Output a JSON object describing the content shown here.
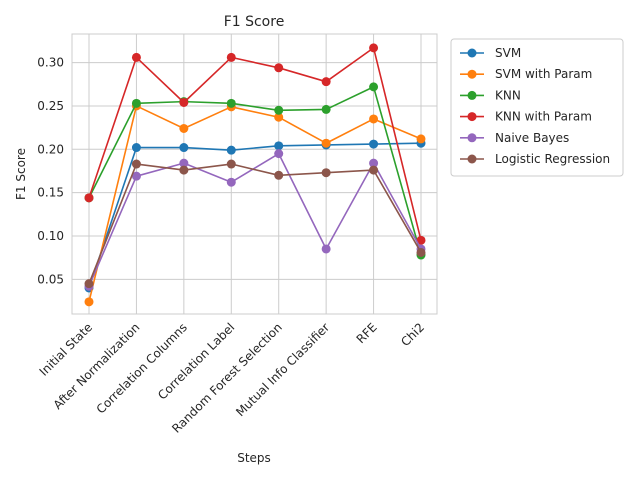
{
  "chart_data": {
    "type": "line",
    "title": "F1 Score",
    "xlabel": "Steps",
    "ylabel": "F1 Score",
    "categories": [
      "Initial State",
      "After Normalization",
      "Correlation Columns",
      "Correlation Label",
      "Random Forest Selection",
      "Mutual Info Classifier",
      "RFE",
      "Chi2"
    ],
    "yticks": [
      0.05,
      0.1,
      0.15,
      0.2,
      0.25,
      0.3
    ],
    "ytick_labels": [
      "0.05",
      "0.10",
      "0.15",
      "0.20",
      "0.25",
      "0.30"
    ],
    "ylim": [
      0.01,
      0.333
    ],
    "grid": true,
    "legend_position": "outside top-right",
    "series": [
      {
        "name": "SVM",
        "color": "#1f77b4",
        "values": [
          0.04,
          0.202,
          0.202,
          0.199,
          0.204,
          0.205,
          0.206,
          0.207
        ]
      },
      {
        "name": "SVM with Param",
        "color": "#ff7f0e",
        "values": [
          0.024,
          0.25,
          0.224,
          0.249,
          0.237,
          0.207,
          0.235,
          0.212
        ]
      },
      {
        "name": "KNN",
        "color": "#2ca02c",
        "values": [
          0.144,
          0.253,
          0.255,
          0.253,
          0.245,
          0.246,
          0.272,
          0.078
        ]
      },
      {
        "name": "KNN with Param",
        "color": "#d62728",
        "values": [
          0.144,
          0.306,
          0.254,
          0.306,
          0.294,
          0.278,
          0.317,
          0.095
        ]
      },
      {
        "name": "Naive Bayes",
        "color": "#9467bd",
        "values": [
          0.042,
          0.169,
          0.184,
          0.162,
          0.195,
          0.085,
          0.184,
          0.085
        ]
      },
      {
        "name": "Logistic Regression",
        "color": "#8c564b",
        "values": [
          0.045,
          0.183,
          0.176,
          0.183,
          0.17,
          0.173,
          0.176,
          0.081
        ]
      }
    ]
  }
}
